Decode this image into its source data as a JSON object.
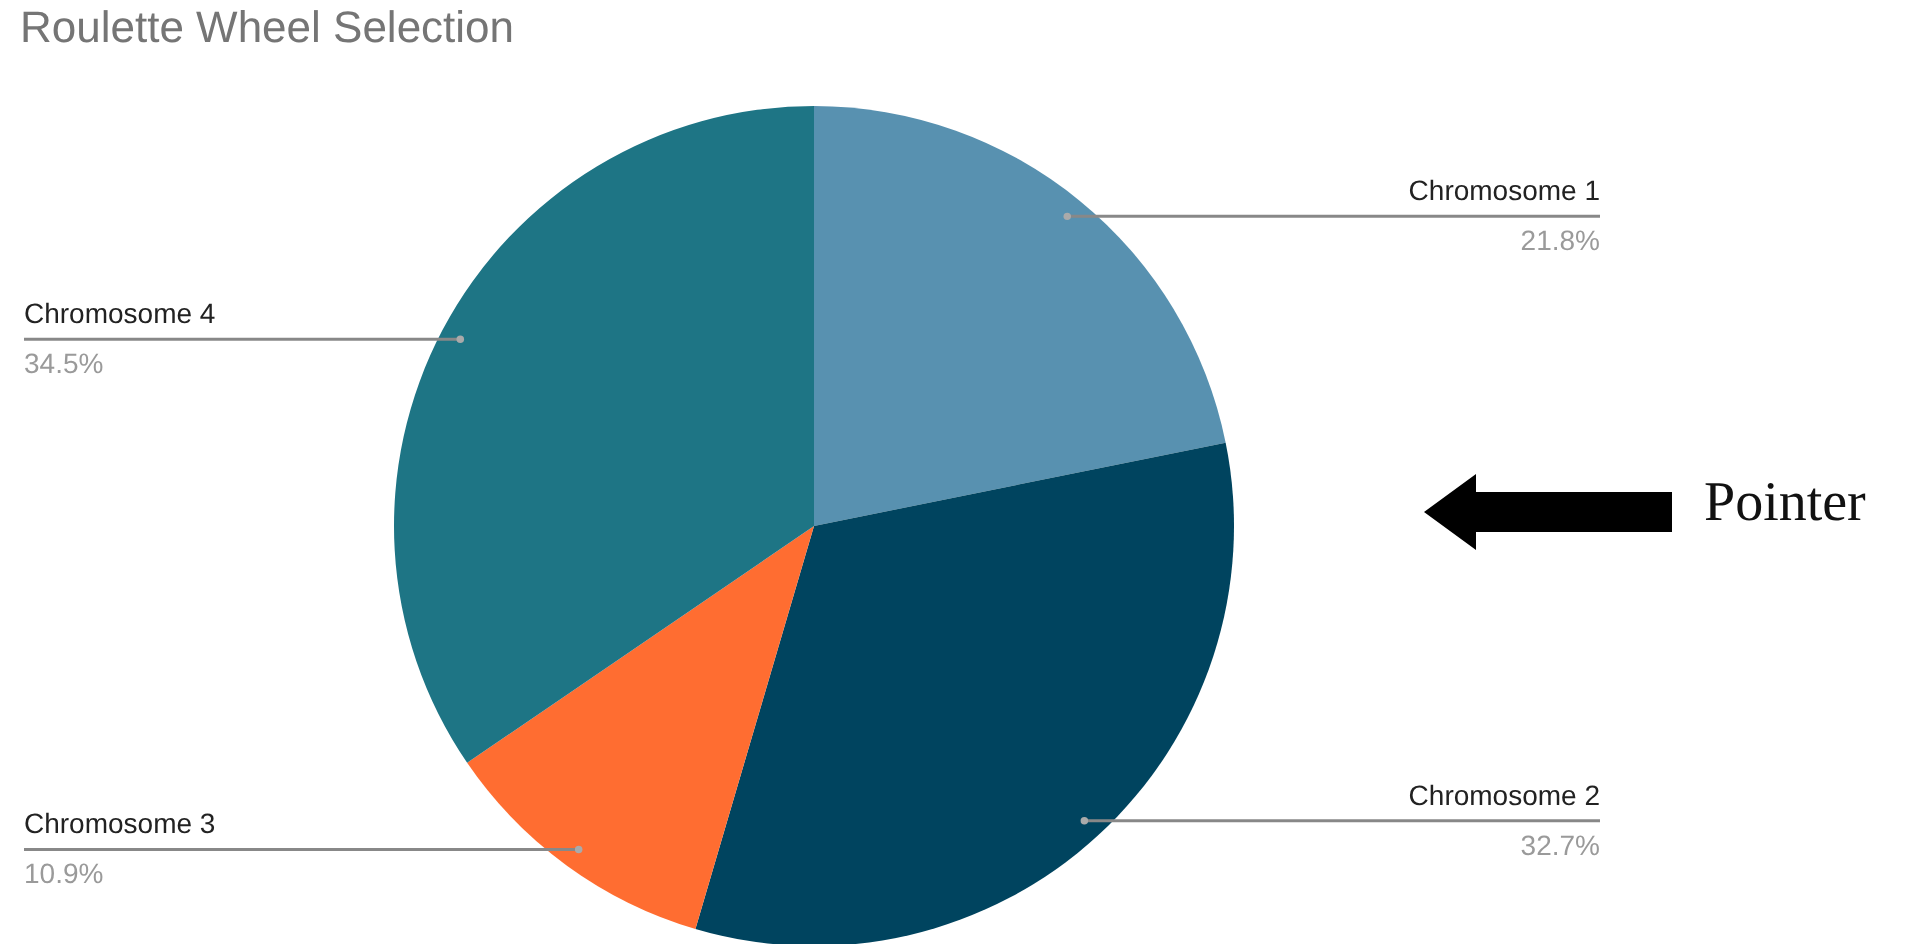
{
  "chart_data": {
    "type": "pie",
    "title": "Roulette Wheel Selection",
    "categories": [
      "Chromosome 1",
      "Chromosome 2",
      "Chromosome 3",
      "Chromosome 4"
    ],
    "values": [
      21.8,
      32.7,
      10.9,
      34.5
    ],
    "colors": [
      "#5891b0",
      "#00445f",
      "#ff6d31",
      "#1e7585"
    ],
    "value_labels": [
      "21.8%",
      "32.7%",
      "10.9%",
      "34.5%"
    ],
    "annotations": [
      "Pointer"
    ]
  }
}
